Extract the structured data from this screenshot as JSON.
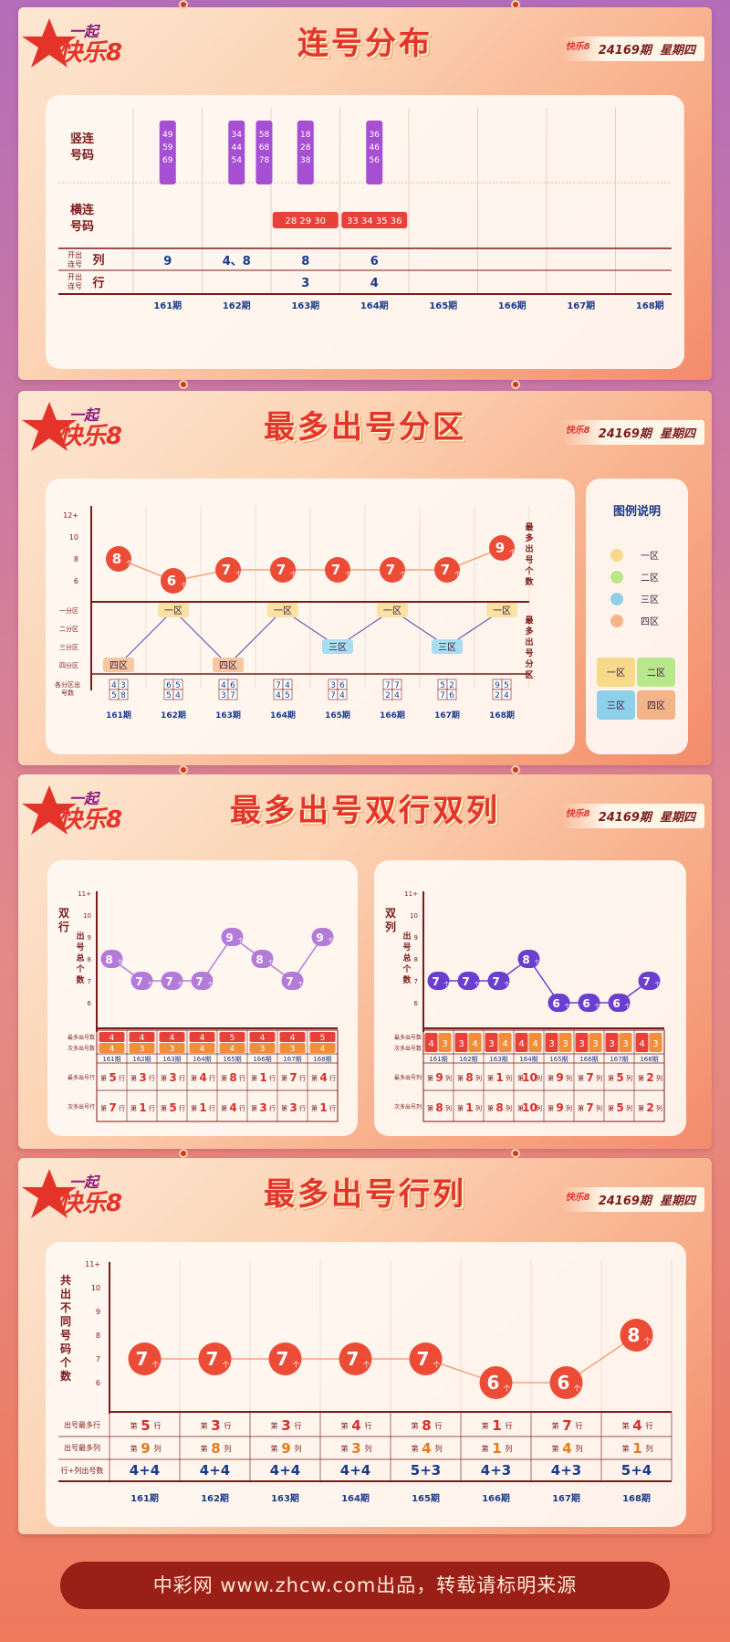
{
  "header": {
    "logo_text": "一起快乐8",
    "issue": "24169期",
    "weekday": "星期四"
  },
  "sections": {
    "s1_title": "连号分布",
    "s2_title": "最多出号分区",
    "s3_title": "最多出号双行双列",
    "s4_title": "最多出号行列"
  },
  "periods": [
    "161期",
    "162期",
    "163期",
    "164期",
    "165期",
    "166期",
    "167期",
    "168期"
  ],
  "s1": {
    "row_vertical": "竖连\n号码",
    "row_horizontal": "横连\n号码",
    "row_col": "开出\n连号",
    "col_word": "列",
    "row_row": "开出\n连号",
    "row_word": "行",
    "vertical_groups": [
      {
        "p": 0,
        "nums": [
          "49",
          "59",
          "69"
        ]
      },
      {
        "p": 1,
        "nums": [
          "34",
          "44",
          "54"
        ]
      },
      {
        "p": 1.4,
        "nums": [
          "58",
          "68",
          "78"
        ]
      },
      {
        "p": 2,
        "nums": [
          "18",
          "28",
          "38"
        ]
      },
      {
        "p": 3,
        "nums": [
          "36",
          "46",
          "56"
        ]
      }
    ],
    "horizontal_groups": [
      {
        "p": 2,
        "text": "28 29 30"
      },
      {
        "p": 3,
        "text": "33 34 35 36"
      }
    ],
    "col_counts": [
      "9",
      "4、8",
      "8",
      "6",
      "",
      "",
      "",
      ""
    ],
    "row_counts": [
      "",
      "",
      "3",
      "4",
      "",
      "",
      "",
      ""
    ]
  },
  "chart_data": [
    {
      "type": "line",
      "id": "zone_count",
      "ylabel": "最多出号个数",
      "y_ticks": [
        "12+",
        "10",
        "8",
        "6"
      ],
      "x": [
        "161期",
        "162期",
        "163期",
        "164期",
        "165期",
        "166期",
        "167期",
        "168期"
      ],
      "values": [
        8,
        6,
        7,
        7,
        7,
        7,
        7,
        9
      ],
      "unit": "个"
    },
    {
      "type": "line",
      "id": "zone_name",
      "ylabel": "最多出号分区",
      "categories_y": [
        "一分区",
        "二分区",
        "三分区",
        "四分区"
      ],
      "values": [
        "四区",
        "一区",
        "四区",
        "一区",
        "三区",
        "一区",
        "三区",
        "一区"
      ],
      "bottom_label": "各分区出号数",
      "zone_counts": [
        [
          "4",
          "3",
          "5",
          "8"
        ],
        [
          "6",
          "5",
          "5",
          "4"
        ],
        [
          "4",
          "6",
          "3",
          "7"
        ],
        [
          "7",
          "4",
          "4",
          "5"
        ],
        [
          "3",
          "6",
          "7",
          "4"
        ],
        [
          "7",
          "7",
          "2",
          "4"
        ],
        [
          "5",
          "2",
          "7",
          "6"
        ],
        [
          "9",
          "5",
          "2",
          "4"
        ]
      ]
    },
    {
      "type": "line",
      "id": "double_row",
      "ylabel": "双行出号总个数",
      "y_ticks": [
        "11+",
        "10",
        "9",
        "8",
        "7",
        "6"
      ],
      "values": [
        8,
        7,
        7,
        7,
        9,
        8,
        7,
        9
      ],
      "unit": "个",
      "table_labels": [
        "最多出号数",
        "次多出号数",
        "最多出号行",
        "次多出号行"
      ],
      "most": [
        "4",
        "4",
        "4",
        "4",
        "5",
        "4",
        "4",
        "5"
      ],
      "second": [
        "4",
        "3",
        "3",
        "4",
        "4",
        "3",
        "3",
        "4"
      ],
      "most_row": [
        "5",
        "3",
        "3",
        "4",
        "8",
        "1",
        "7",
        "4"
      ],
      "second_row": [
        "7",
        "1",
        "5",
        "1",
        "4",
        "3",
        "3",
        "1"
      ]
    },
    {
      "type": "line",
      "id": "double_col",
      "ylabel": "双列出号总个数",
      "y_ticks": [
        "11+",
        "10",
        "9",
        "8",
        "7",
        "6"
      ],
      "values": [
        7,
        7,
        7,
        8,
        6,
        6,
        6,
        7
      ],
      "unit": "个",
      "table_labels": [
        "最多出号数",
        "次多出号数",
        "最多出号列",
        "次多出号列"
      ],
      "pairs": [
        [
          "4",
          "3"
        ],
        [
          "3",
          "4"
        ],
        [
          "3",
          "4"
        ],
        [
          "4",
          "4"
        ],
        [
          "3",
          "3"
        ],
        [
          "3",
          "3"
        ],
        [
          "3",
          "3"
        ],
        [
          "4",
          "3"
        ]
      ],
      "most_col": [
        "9",
        "8",
        "1",
        "10",
        "9",
        "7",
        "5",
        "2"
      ],
      "second_col": [
        "8",
        "1",
        "8",
        "10",
        "9",
        "7",
        "5",
        "2"
      ]
    },
    {
      "type": "line",
      "id": "rowcol",
      "ylabel": "共出不同号码个数",
      "y_ticks": [
        "11+",
        "10",
        "9",
        "8",
        "7",
        "6"
      ],
      "values": [
        7,
        7,
        7,
        7,
        7,
        6,
        6,
        8
      ],
      "unit": "个",
      "table_labels": [
        "出号最多行",
        "出号最多列",
        "行+列出号数"
      ],
      "row_max": [
        "5",
        "3",
        "3",
        "4",
        "8",
        "1",
        "7",
        "4"
      ],
      "col_max": [
        "9",
        "8",
        "9",
        "3",
        "4",
        "1",
        "4",
        "1"
      ],
      "sum": [
        "4+4",
        "4+4",
        "4+4",
        "4+4",
        "5+3",
        "4+3",
        "4+3",
        "5+4"
      ]
    }
  ],
  "legend": {
    "title": "图例说明",
    "items": [
      "一区",
      "二区",
      "三区",
      "四区"
    ],
    "colors": [
      "#f7d98a",
      "#b9e88a",
      "#8ed0ea",
      "#f4b48a"
    ]
  },
  "labels": {
    "row_prefix": "第",
    "row_suffix": "行",
    "col_suffix": "列"
  },
  "footer": "中彩网 www.zhcw.com出品，转载请标明来源"
}
